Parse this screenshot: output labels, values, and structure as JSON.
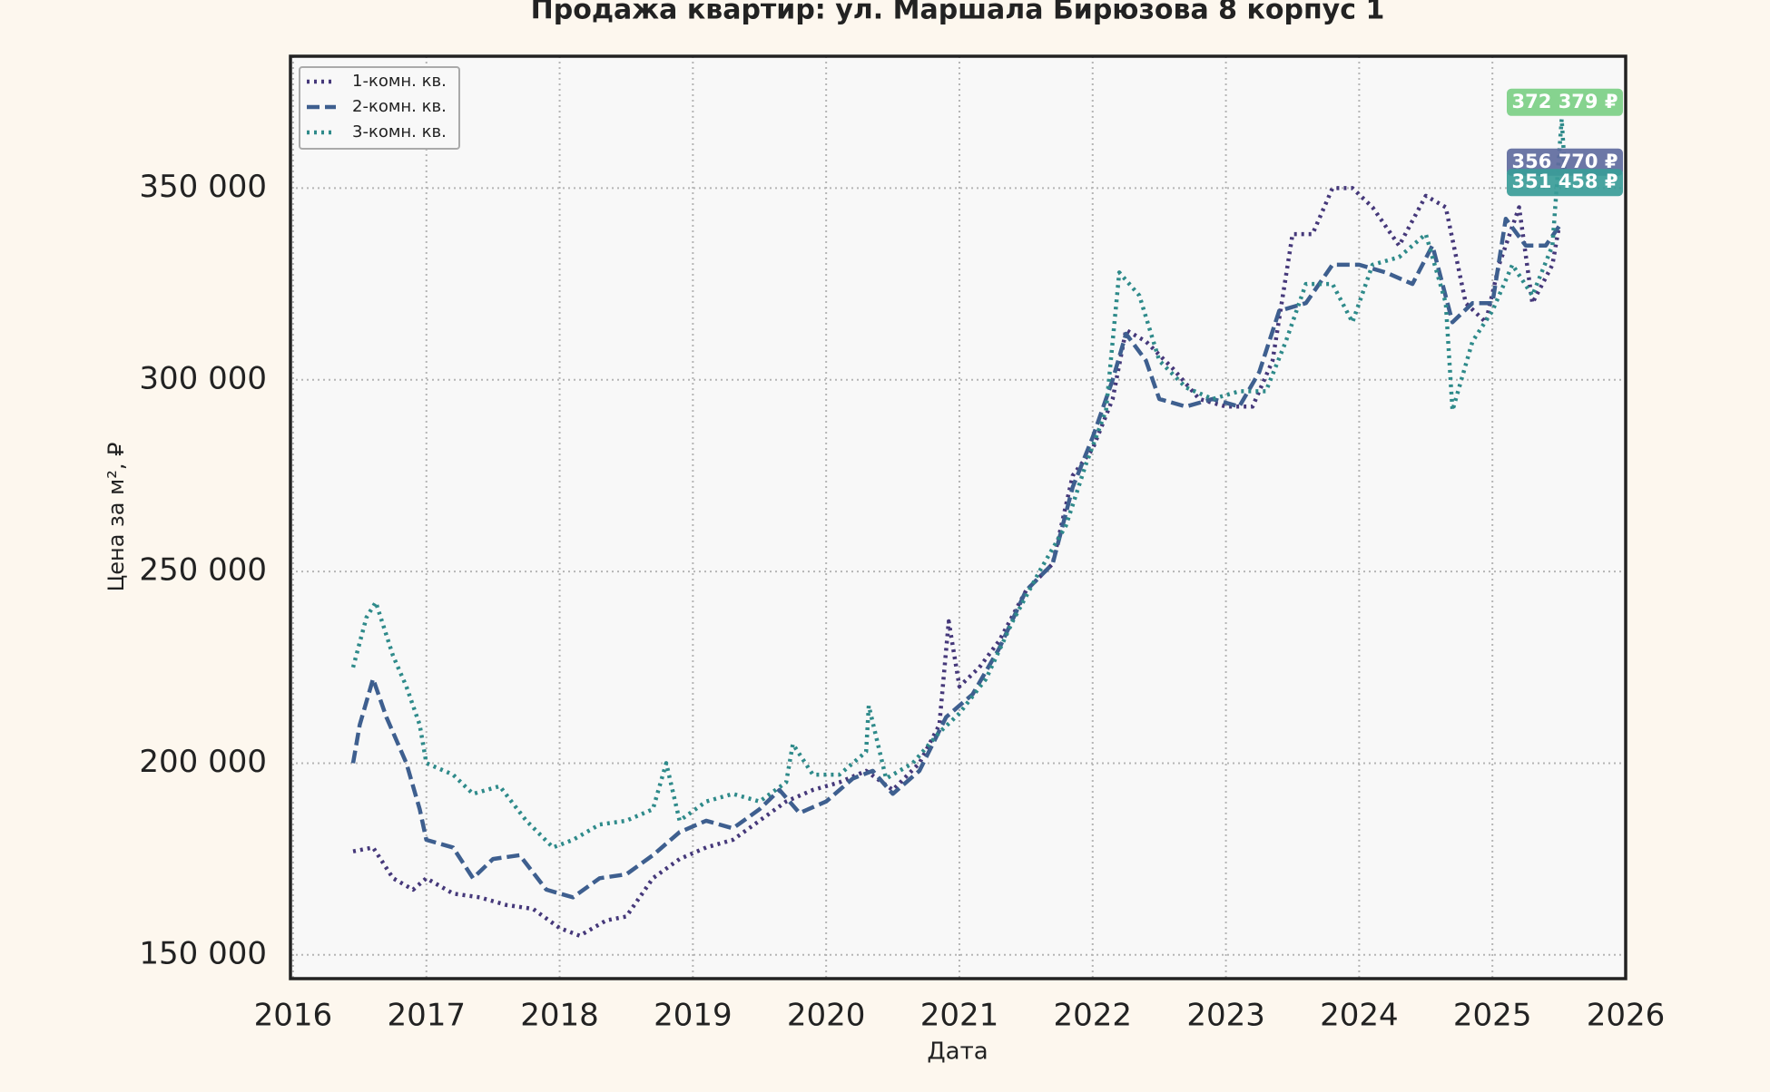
{
  "chart_data": {
    "type": "line",
    "title": "Продажа квартир: ул. Маршала Бирюзова 8 корпус 1",
    "x_label": "Дата",
    "y_label": "Цена за м², ₽",
    "xlim": [
      2015.98,
      2026.0
    ],
    "xticks": [
      2016,
      2017,
      2018,
      2019,
      2020,
      2021,
      2022,
      2023,
      2024,
      2025,
      2026
    ],
    "ylim": [
      143800,
      384400
    ],
    "yticks": [
      {
        "value": 150000,
        "label": "150 000"
      },
      {
        "value": 200000,
        "label": "200 000"
      },
      {
        "value": 250000,
        "label": "250 000"
      },
      {
        "value": 300000,
        "label": "300 000"
      },
      {
        "value": 350000,
        "label": "350 000"
      }
    ],
    "grid": true,
    "legend": "upper left",
    "series": [
      {
        "name": "1-комн. кв.",
        "color": "#45387a",
        "linestyle": "dotted",
        "x": [
          2016.45,
          2016.6,
          2016.75,
          2016.9,
          2017.0,
          2017.2,
          2017.4,
          2017.6,
          2017.8,
          2018.0,
          2018.15,
          2018.35,
          2018.5,
          2018.7,
          2018.9,
          2019.1,
          2019.3,
          2019.5,
          2019.7,
          2019.9,
          2020.1,
          2020.3,
          2020.5,
          2020.7,
          2020.85,
          2020.92,
          2021.0,
          2021.15,
          2021.3,
          2021.5,
          2021.7,
          2021.85,
          2022.0,
          2022.15,
          2022.25,
          2022.4,
          2022.6,
          2022.8,
          2023.0,
          2023.2,
          2023.35,
          2023.5,
          2023.65,
          2023.8,
          2023.95,
          2024.1,
          2024.3,
          2024.5,
          2024.65,
          2024.8,
          2024.95,
          2025.05,
          2025.2,
          2025.3,
          2025.45,
          2025.5
        ],
        "values": [
          177000,
          178000,
          170000,
          167000,
          170000,
          166000,
          165000,
          163000,
          162000,
          157000,
          155000,
          159000,
          160000,
          170000,
          175000,
          178000,
          180000,
          185000,
          190000,
          193000,
          195000,
          198000,
          193000,
          200000,
          210000,
          237000,
          220000,
          225000,
          232000,
          245000,
          252000,
          275000,
          282000,
          295000,
          313000,
          310000,
          303000,
          295000,
          293000,
          293000,
          305000,
          338000,
          338000,
          350000,
          350000,
          345000,
          335000,
          348000,
          345000,
          320000,
          315000,
          330000,
          345000,
          320000,
          330000,
          340000
        ]
      },
      {
        "name": "2-комн. кв.",
        "color": "#3e5f8f",
        "linestyle": "dashed",
        "x": [
          2016.45,
          2016.5,
          2016.6,
          2016.7,
          2016.85,
          2016.95,
          2017.0,
          2017.2,
          2017.35,
          2017.5,
          2017.7,
          2017.9,
          2018.1,
          2018.3,
          2018.5,
          2018.7,
          2018.9,
          2019.1,
          2019.3,
          2019.5,
          2019.65,
          2019.8,
          2020.0,
          2020.2,
          2020.35,
          2020.5,
          2020.7,
          2020.9,
          2021.1,
          2021.3,
          2021.5,
          2021.7,
          2021.85,
          2022.0,
          2022.15,
          2022.25,
          2022.4,
          2022.5,
          2022.7,
          2022.9,
          2023.1,
          2023.25,
          2023.4,
          2023.6,
          2023.8,
          2024.0,
          2024.2,
          2024.4,
          2024.55,
          2024.7,
          2024.85,
          2025.0,
          2025.1,
          2025.25,
          2025.4,
          2025.5
        ],
        "values": [
          200000,
          210000,
          222000,
          212000,
          200000,
          188000,
          180000,
          178000,
          170000,
          175000,
          176000,
          167000,
          165000,
          170000,
          171000,
          176000,
          182000,
          185000,
          183000,
          188000,
          193000,
          187000,
          190000,
          196000,
          198000,
          192000,
          198000,
          212000,
          218000,
          230000,
          245000,
          252000,
          272000,
          285000,
          300000,
          312000,
          305000,
          295000,
          293000,
          295000,
          293000,
          302000,
          318000,
          320000,
          330000,
          330000,
          328000,
          325000,
          335000,
          315000,
          320000,
          320000,
          342000,
          335000,
          335000,
          340000
        ]
      },
      {
        "name": "3-комн. кв.",
        "color": "#2e8a8a",
        "linestyle": "dotted",
        "x": [
          2016.45,
          2016.55,
          2016.62,
          2016.75,
          2016.85,
          2016.95,
          2017.0,
          2017.2,
          2017.35,
          2017.55,
          2017.75,
          2017.95,
          2018.1,
          2018.3,
          2018.5,
          2018.7,
          2018.8,
          2018.9,
          2019.1,
          2019.3,
          2019.5,
          2019.7,
          2019.75,
          2019.9,
          2020.1,
          2020.3,
          2020.32,
          2020.45,
          2020.65,
          2020.85,
          2021.0,
          2021.2,
          2021.4,
          2021.6,
          2021.8,
          2021.95,
          2022.1,
          2022.2,
          2022.35,
          2022.5,
          2022.7,
          2022.9,
          2023.1,
          2023.3,
          2023.45,
          2023.6,
          2023.8,
          2023.95,
          2024.1,
          2024.3,
          2024.5,
          2024.65,
          2024.7,
          2024.85,
          2025.0,
          2025.15,
          2025.3,
          2025.45,
          2025.52,
          2025.55
        ],
        "values": [
          225000,
          238000,
          242000,
          228000,
          220000,
          210000,
          200000,
          197000,
          192000,
          194000,
          185000,
          178000,
          180000,
          184000,
          185000,
          188000,
          200000,
          185000,
          190000,
          192000,
          190000,
          195000,
          205000,
          197000,
          197000,
          203000,
          215000,
          196000,
          200000,
          208000,
          213000,
          222000,
          237000,
          250000,
          262000,
          278000,
          292000,
          328000,
          322000,
          305000,
          298000,
          295000,
          297000,
          297000,
          310000,
          325000,
          325000,
          315000,
          330000,
          332000,
          338000,
          320000,
          292000,
          310000,
          318000,
          330000,
          322000,
          335000,
          368000,
          351458
        ]
      }
    ],
    "annotations": [
      {
        "label": "372 379 ₽",
        "value": 372379,
        "color": "#7ccf85"
      },
      {
        "label": "356 770 ₽",
        "value": 356770,
        "color": "#5f6b9e"
      },
      {
        "label": "351 458 ₽",
        "value": 351458,
        "color": "#3a9c98"
      }
    ]
  }
}
